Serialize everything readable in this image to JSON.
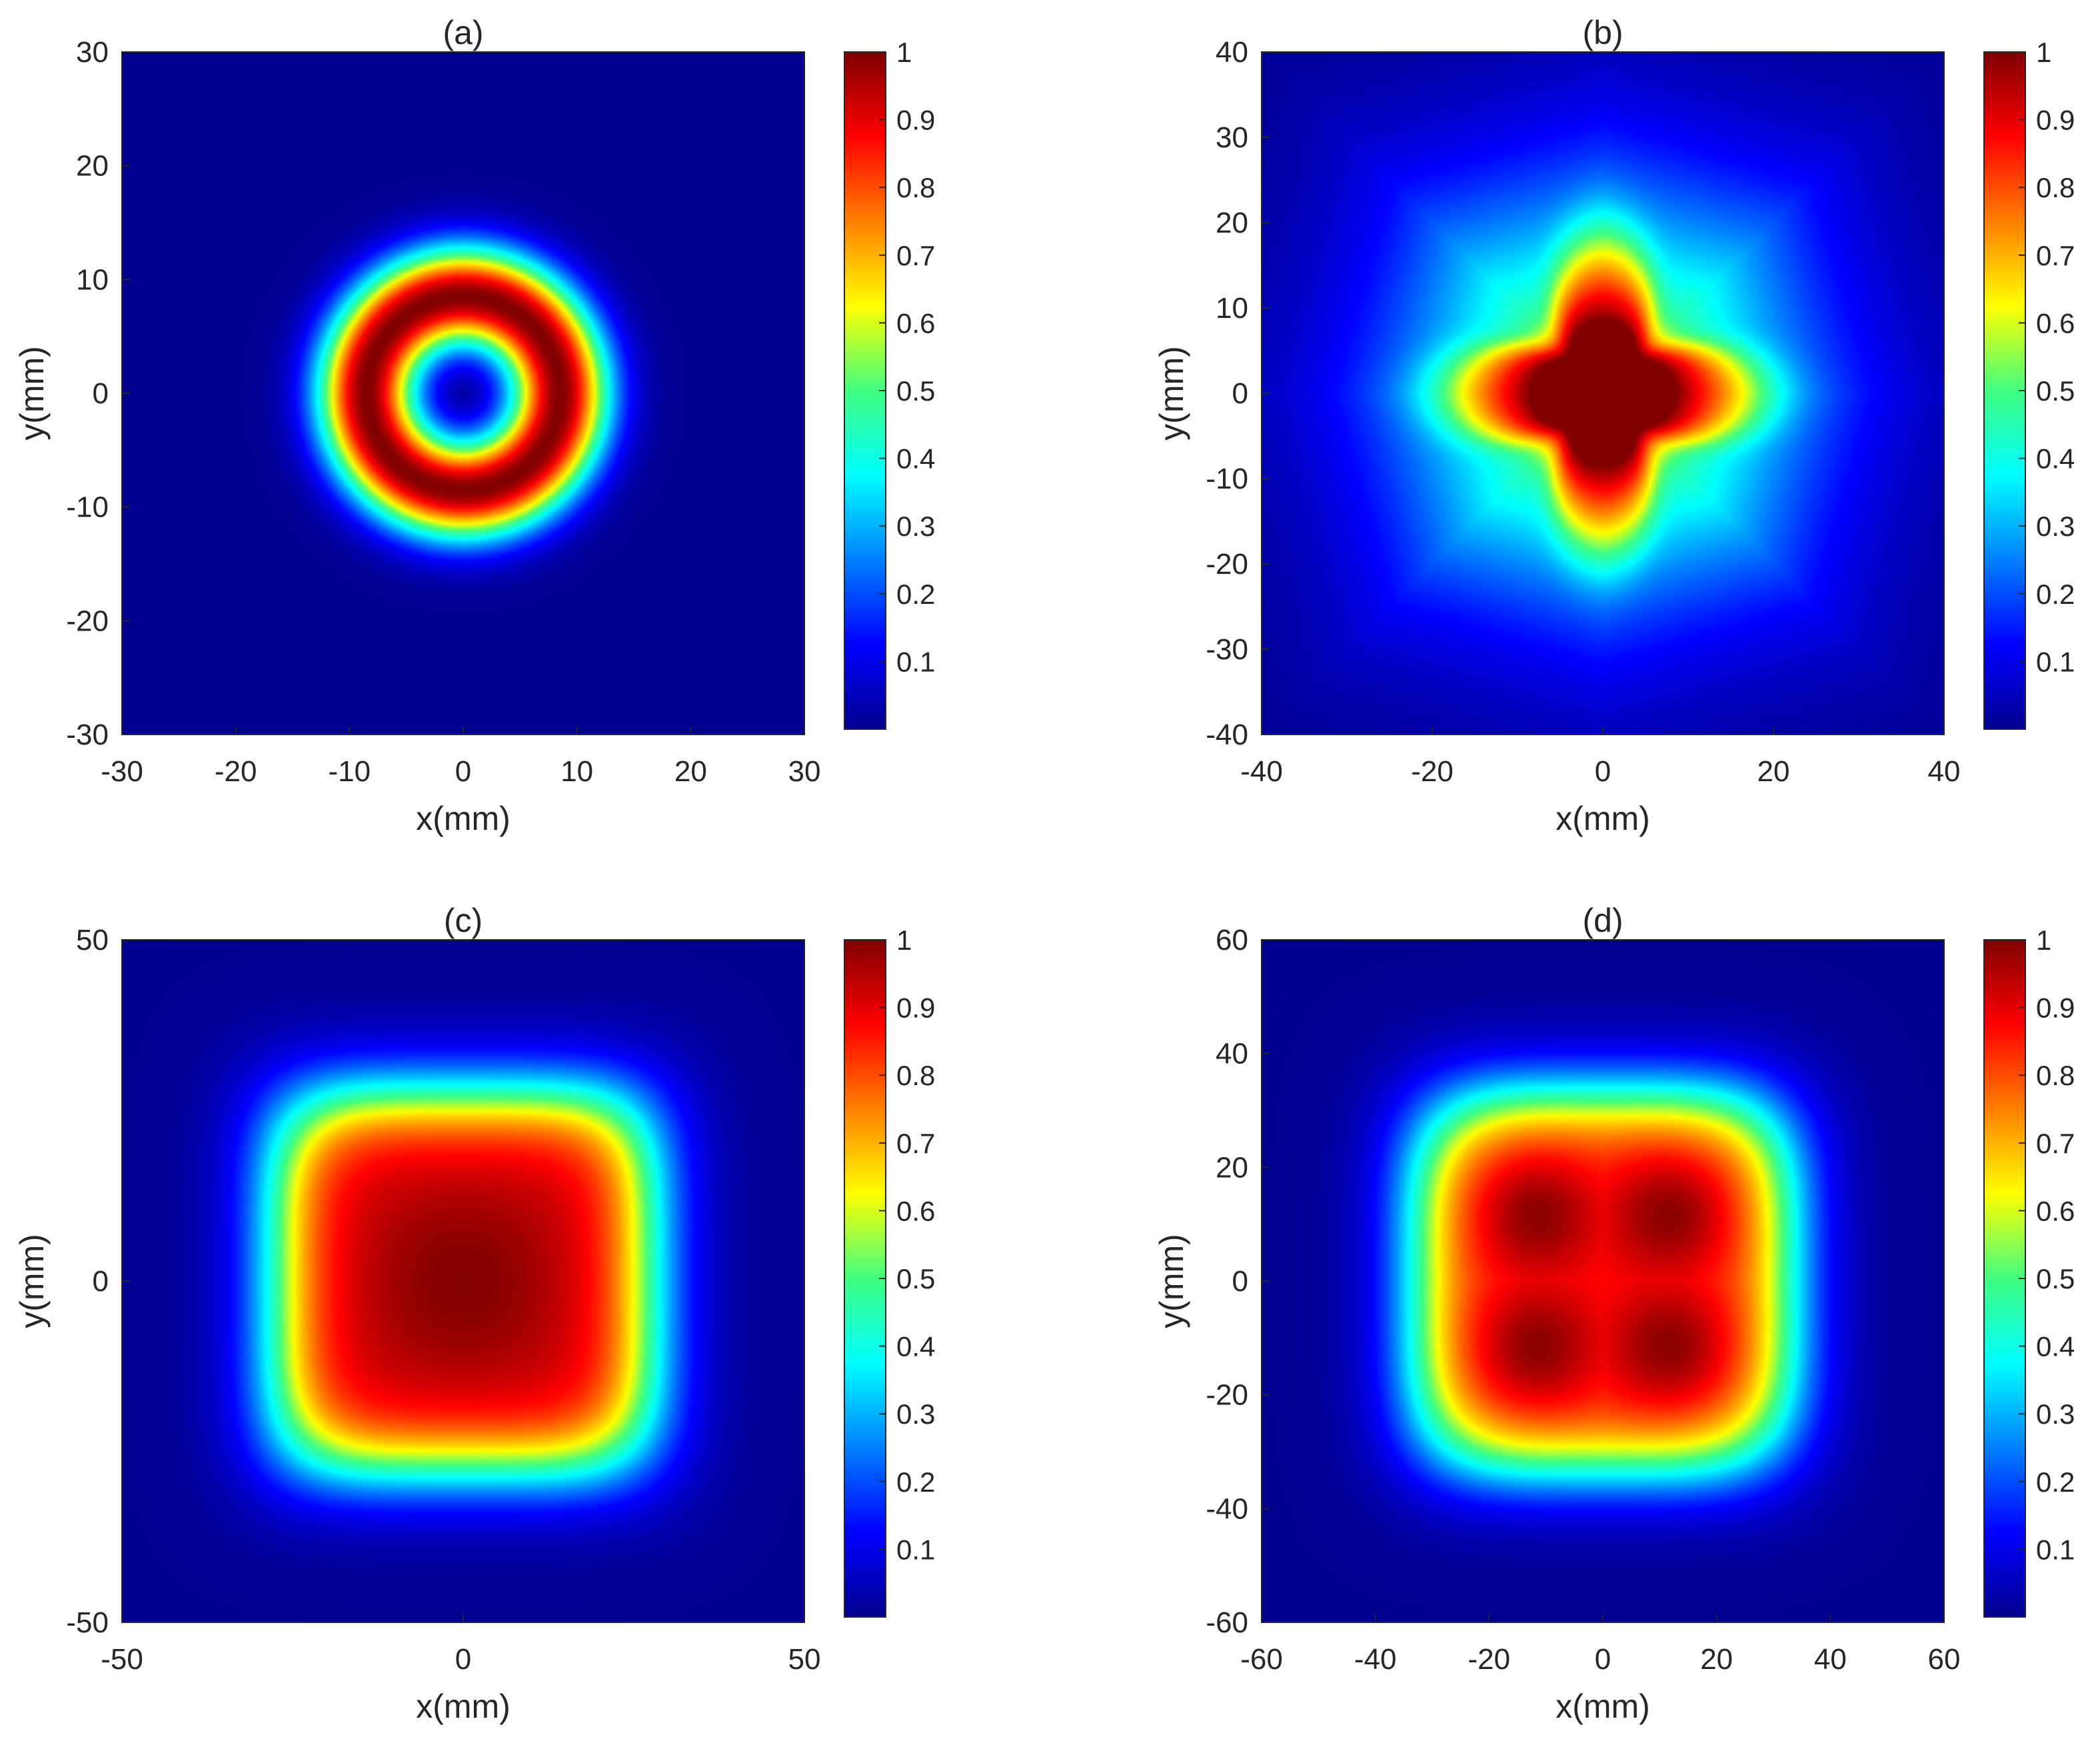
{
  "chart_data": [
    {
      "type": "heatmap",
      "title": "(a)",
      "xlabel": "x(mm)",
      "ylabel": "y(mm)",
      "xlim": [
        -30,
        30
      ],
      "ylim": [
        -30,
        30
      ],
      "xticks": [
        -30,
        -20,
        -10,
        0,
        10,
        20,
        30
      ],
      "yticks": [
        -30,
        -20,
        -10,
        0,
        10,
        20,
        30
      ],
      "colormap": "jet",
      "clim": [
        0,
        1
      ],
      "colorbar_ticks": [
        0.1,
        0.2,
        0.3,
        0.4,
        0.5,
        0.6,
        0.7,
        0.8,
        0.9,
        1
      ],
      "pattern": "annular ring, dark center, peak intensity 1 at radius ~8.5 mm, outer edge ~14 mm"
    },
    {
      "type": "heatmap",
      "title": "(b)",
      "xlabel": "x(mm)",
      "ylabel": "y(mm)",
      "xlim": [
        -40,
        40
      ],
      "ylim": [
        -40,
        40
      ],
      "xticks": [
        -40,
        -20,
        0,
        20,
        40
      ],
      "yticks": [
        -40,
        -30,
        -20,
        -10,
        0,
        10,
        20,
        30,
        40
      ],
      "colormap": "jet",
      "clim": [
        0,
        1
      ],
      "colorbar_ticks": [
        0.1,
        0.2,
        0.3,
        0.4,
        0.5,
        0.6,
        0.7,
        0.8,
        0.9,
        1
      ],
      "pattern": "four-lobed cross/flower with peak 1 at center, lobes reaching ~17 mm, square halo to ~22 mm"
    },
    {
      "type": "heatmap",
      "title": "(c)",
      "xlabel": "x(mm)",
      "ylabel": "y(mm)",
      "xlim": [
        -50,
        50
      ],
      "ylim": [
        -50,
        50
      ],
      "xticks": [
        -50,
        0,
        50
      ],
      "yticks": [
        -50,
        0,
        50
      ],
      "colormap": "jet",
      "clim": [
        0,
        1
      ],
      "colorbar_ticks": [
        0.1,
        0.2,
        0.3,
        0.4,
        0.5,
        0.6,
        0.7,
        0.8,
        0.9,
        1
      ],
      "pattern": "flat-topped rounded square, near 1 inside |x|,|y| < ~22 mm, edge falling to 0 at ~32 mm"
    },
    {
      "type": "heatmap",
      "title": "(d)",
      "xlabel": "x(mm)",
      "ylabel": "y(mm)",
      "xlim": [
        -60,
        60
      ],
      "ylim": [
        -60,
        60
      ],
      "xticks": [
        -60,
        -40,
        -20,
        0,
        20,
        40,
        60
      ],
      "yticks": [
        -60,
        -40,
        -20,
        0,
        20,
        40,
        60
      ],
      "colormap": "jet",
      "clim": [
        0,
        1
      ],
      "colorbar_ticks": [
        0.1,
        0.2,
        0.3,
        0.4,
        0.5,
        0.6,
        0.7,
        0.8,
        0.9,
        1
      ],
      "pattern": "rounded square with four maxima near (±12, ±12) mm, edge falling to 0 at ~40 mm"
    }
  ]
}
